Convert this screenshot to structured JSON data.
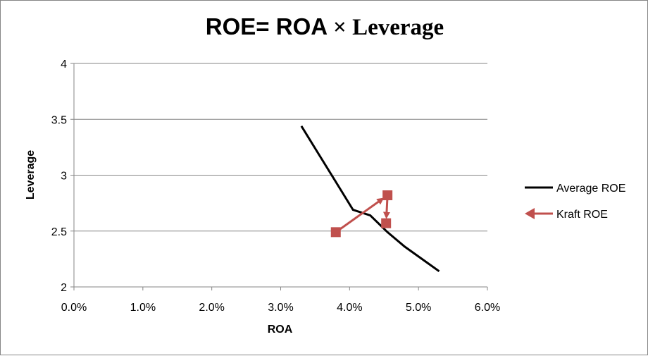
{
  "chart_data": {
    "type": "line",
    "title_part1": "ROE= ROA",
    "title_part2": "× Leverage",
    "xlabel": "ROA",
    "ylabel": "Leverage",
    "xlim": [
      0,
      0.06
    ],
    "ylim": [
      2,
      4
    ],
    "x_ticks": [
      0,
      0.01,
      0.02,
      0.03,
      0.04,
      0.05,
      0.06
    ],
    "x_tick_labels": [
      "0.0%",
      "1.0%",
      "2.0%",
      "3.0%",
      "4.0%",
      "5.0%",
      "6.0%"
    ],
    "y_ticks": [
      2,
      2.5,
      3,
      3.5,
      4
    ],
    "y_tick_labels": [
      "2",
      "2.5",
      "3",
      "3.5",
      "4"
    ],
    "grid": "horizontal",
    "legend_position": "right",
    "series": [
      {
        "name": "Average ROE",
        "color": "#000000",
        "marker": "none",
        "x": [
          0.033,
          0.0355,
          0.038,
          0.0405,
          0.043,
          0.0455,
          0.048,
          0.0505,
          0.053
        ],
        "y": [
          3.44,
          3.19,
          2.94,
          2.69,
          2.64,
          2.49,
          2.36,
          2.25,
          2.14
        ]
      },
      {
        "name": "Kraft ROE",
        "color": "#C0504D",
        "marker": "square",
        "x": [
          0.038,
          0.0455,
          0.0453
        ],
        "y": [
          2.49,
          2.82,
          2.57
        ]
      }
    ]
  }
}
